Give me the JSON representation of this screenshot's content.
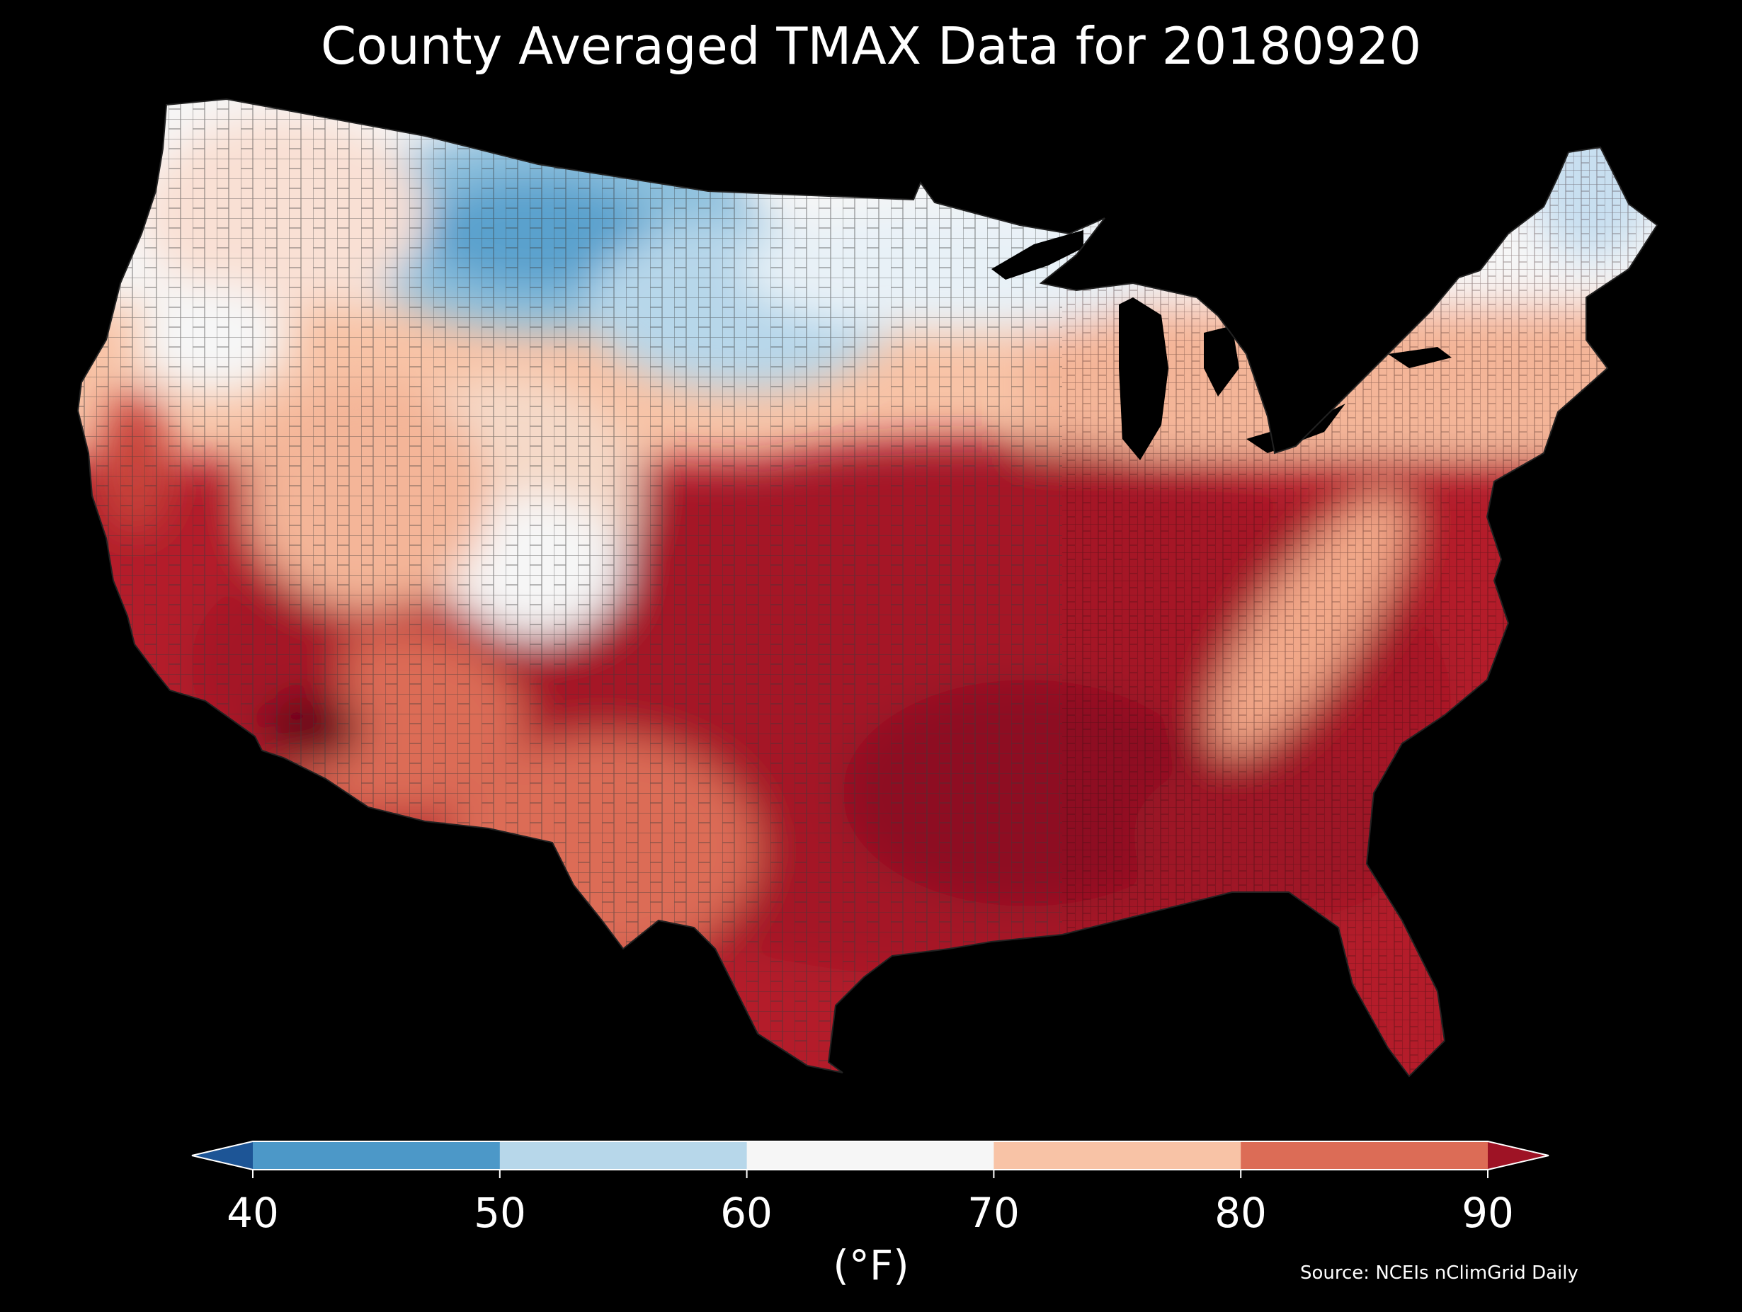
{
  "title": "County Averaged TMAX Data for 20180920",
  "colorbar": {
    "label": "(°F)",
    "ticks": [
      "40",
      "50",
      "60",
      "70",
      "80",
      "90"
    ],
    "bins": [
      {
        "range": "<40",
        "color": "#1d5596"
      },
      {
        "range": "40-50",
        "color": "#4c98c8"
      },
      {
        "range": "50-60",
        "color": "#b7d7ea"
      },
      {
        "range": "60-70",
        "color": "#f6f6f6"
      },
      {
        "range": "70-80",
        "color": "#f8c3a6"
      },
      {
        "range": "80-90",
        "color": "#dc6c56"
      },
      {
        "range": ">90",
        "color": "#9e1325"
      }
    ],
    "extend": "both"
  },
  "source": "Source: NCEIs nClimGrid Daily",
  "map": {
    "region": "Contiguous United States",
    "unit": "county",
    "variable": "TMAX",
    "background_color": "#000000",
    "outline_color": "#3a3a3a",
    "pattern": "cooler (50-60 °F) across northern plains and northern Rockies; warmer (80-90+ °F) across southern plains, southeast, and desert southwest"
  }
}
